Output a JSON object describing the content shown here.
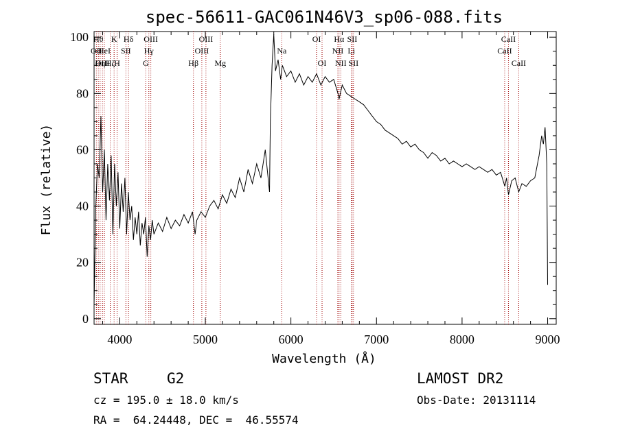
{
  "info": {
    "object_class": "STAR",
    "subclass": "G2",
    "redshift_line": "cz = 195.0 ± 18.0 km/s",
    "coords_line": "RA =  64.24448, DEC =  46.55574",
    "survey": "LAMOST DR2",
    "obs_date": "Obs-Date: 20131114"
  },
  "chart_data": {
    "type": "line",
    "title": "spec-56611-GAC061N46V3_sp06-088.fits",
    "xlabel": "Wavelength (Å)",
    "ylabel": "Flux (relative)",
    "xlim": [
      3700,
      9100
    ],
    "ylim": [
      -2,
      102
    ],
    "x_ticks": [
      4000,
      5000,
      6000,
      7000,
      8000,
      9000
    ],
    "y_ticks": [
      0,
      20,
      40,
      60,
      80,
      100
    ],
    "grid": false,
    "series": [
      {
        "points": [
          [
            3700,
            5
          ],
          [
            3720,
            40
          ],
          [
            3740,
            55
          ],
          [
            3760,
            50
          ],
          [
            3780,
            72
          ],
          [
            3800,
            45
          ],
          [
            3820,
            60
          ],
          [
            3840,
            35
          ],
          [
            3860,
            55
          ],
          [
            3880,
            42
          ],
          [
            3900,
            58
          ],
          [
            3920,
            30
          ],
          [
            3940,
            55
          ],
          [
            3960,
            40
          ],
          [
            3980,
            52
          ],
          [
            4000,
            32
          ],
          [
            4020,
            48
          ],
          [
            4040,
            38
          ],
          [
            4060,
            50
          ],
          [
            4080,
            30
          ],
          [
            4100,
            45
          ],
          [
            4120,
            35
          ],
          [
            4140,
            40
          ],
          [
            4160,
            28
          ],
          [
            4180,
            36
          ],
          [
            4200,
            30
          ],
          [
            4220,
            38
          ],
          [
            4240,
            26
          ],
          [
            4260,
            34
          ],
          [
            4280,
            30
          ],
          [
            4300,
            36
          ],
          [
            4320,
            22
          ],
          [
            4340,
            33
          ],
          [
            4360,
            28
          ],
          [
            4380,
            35
          ],
          [
            4400,
            30
          ],
          [
            4450,
            34
          ],
          [
            4500,
            31
          ],
          [
            4550,
            36
          ],
          [
            4600,
            32
          ],
          [
            4650,
            35
          ],
          [
            4700,
            33
          ],
          [
            4750,
            37
          ],
          [
            4800,
            34
          ],
          [
            4850,
            38
          ],
          [
            4880,
            30
          ],
          [
            4900,
            35
          ],
          [
            4950,
            38
          ],
          [
            5000,
            36
          ],
          [
            5050,
            40
          ],
          [
            5100,
            42
          ],
          [
            5150,
            39
          ],
          [
            5200,
            44
          ],
          [
            5250,
            41
          ],
          [
            5300,
            46
          ],
          [
            5350,
            43
          ],
          [
            5400,
            50
          ],
          [
            5450,
            45
          ],
          [
            5500,
            53
          ],
          [
            5550,
            48
          ],
          [
            5600,
            55
          ],
          [
            5650,
            50
          ],
          [
            5700,
            60
          ],
          [
            5750,
            45
          ],
          [
            5760,
            70
          ],
          [
            5780,
            90
          ],
          [
            5800,
            101
          ],
          [
            5820,
            88
          ],
          [
            5850,
            92
          ],
          [
            5880,
            85
          ],
          [
            5900,
            90
          ],
          [
            5950,
            86
          ],
          [
            6000,
            88
          ],
          [
            6050,
            84
          ],
          [
            6100,
            87
          ],
          [
            6150,
            83
          ],
          [
            6200,
            86
          ],
          [
            6250,
            84
          ],
          [
            6300,
            87
          ],
          [
            6350,
            83
          ],
          [
            6400,
            86
          ],
          [
            6450,
            84
          ],
          [
            6500,
            85
          ],
          [
            6550,
            80
          ],
          [
            6563,
            78
          ],
          [
            6600,
            83
          ],
          [
            6650,
            80
          ],
          [
            6700,
            79
          ],
          [
            6750,
            78
          ],
          [
            6800,
            77
          ],
          [
            6850,
            76
          ],
          [
            6900,
            74
          ],
          [
            6950,
            72
          ],
          [
            7000,
            70
          ],
          [
            7050,
            69
          ],
          [
            7100,
            67
          ],
          [
            7150,
            66
          ],
          [
            7200,
            65
          ],
          [
            7250,
            64
          ],
          [
            7300,
            62
          ],
          [
            7350,
            63
          ],
          [
            7400,
            61
          ],
          [
            7450,
            62
          ],
          [
            7500,
            60
          ],
          [
            7550,
            59
          ],
          [
            7600,
            57
          ],
          [
            7650,
            59
          ],
          [
            7700,
            58
          ],
          [
            7750,
            56
          ],
          [
            7800,
            57
          ],
          [
            7850,
            55
          ],
          [
            7900,
            56
          ],
          [
            7950,
            55
          ],
          [
            8000,
            54
          ],
          [
            8050,
            55
          ],
          [
            8100,
            54
          ],
          [
            8150,
            53
          ],
          [
            8200,
            54
          ],
          [
            8250,
            53
          ],
          [
            8300,
            52
          ],
          [
            8350,
            53
          ],
          [
            8400,
            51
          ],
          [
            8450,
            52
          ],
          [
            8500,
            47
          ],
          [
            8520,
            50
          ],
          [
            8542,
            44
          ],
          [
            8580,
            49
          ],
          [
            8620,
            50
          ],
          [
            8662,
            45
          ],
          [
            8700,
            48
          ],
          [
            8750,
            47
          ],
          [
            8800,
            49
          ],
          [
            8850,
            50
          ],
          [
            8900,
            58
          ],
          [
            8930,
            65
          ],
          [
            8950,
            62
          ],
          [
            8970,
            68
          ],
          [
            8990,
            55
          ],
          [
            9000,
            12
          ]
        ]
      }
    ],
    "lines": [
      {
        "wavelength": 3727,
        "label": "OII",
        "row": 1
      },
      {
        "wavelength": 3750,
        "label": "Hθ",
        "row": 0
      },
      {
        "wavelength": 3771,
        "label": "Hη",
        "row": 2
      },
      {
        "wavelength": 3798,
        "label": "OIII",
        "row": 2
      },
      {
        "wavelength": 3820,
        "label": "HeI",
        "row": 1
      },
      {
        "wavelength": 3889,
        "label": "Hζ",
        "row": 2
      },
      {
        "wavelength": 3934,
        "label": "K",
        "row": 0
      },
      {
        "wavelength": 3969,
        "label": "H",
        "row": 2
      },
      {
        "wavelength": 4072,
        "label": "SII",
        "row": 1
      },
      {
        "wavelength": 4102,
        "label": "Hδ",
        "row": 0
      },
      {
        "wavelength": 4304,
        "label": "G",
        "row": 2
      },
      {
        "wavelength": 4340,
        "label": "Hγ",
        "row": 1
      },
      {
        "wavelength": 4363,
        "label": "OIII",
        "row": 0
      },
      {
        "wavelength": 4861,
        "label": "Hβ",
        "row": 2
      },
      {
        "wavelength": 4959,
        "label": "OIII",
        "row": 1
      },
      {
        "wavelength": 5007,
        "label": "OIII",
        "row": 0
      },
      {
        "wavelength": 5175,
        "label": "Mg",
        "row": 2
      },
      {
        "wavelength": 5893,
        "label": "Na",
        "row": 1
      },
      {
        "wavelength": 6300,
        "label": "OI",
        "row": 0
      },
      {
        "wavelength": 6364,
        "label": "OI",
        "row": 2
      },
      {
        "wavelength": 6548,
        "label": "NII",
        "row": 1
      },
      {
        "wavelength": 6563,
        "label": "Hα",
        "row": 0
      },
      {
        "wavelength": 6583,
        "label": "NII",
        "row": 2
      },
      {
        "wavelength": 6707,
        "label": "Li",
        "row": 1
      },
      {
        "wavelength": 6716,
        "label": "SII",
        "row": 0
      },
      {
        "wavelength": 6731,
        "label": "SII",
        "row": 2
      },
      {
        "wavelength": 8498,
        "label": "CaII",
        "row": 1
      },
      {
        "wavelength": 8542,
        "label": "CaII",
        "row": 0
      },
      {
        "wavelength": 8662,
        "label": "CaII",
        "row": 2
      }
    ],
    "line_marker_color": "#a00000",
    "spectrum_color": "#000000"
  }
}
